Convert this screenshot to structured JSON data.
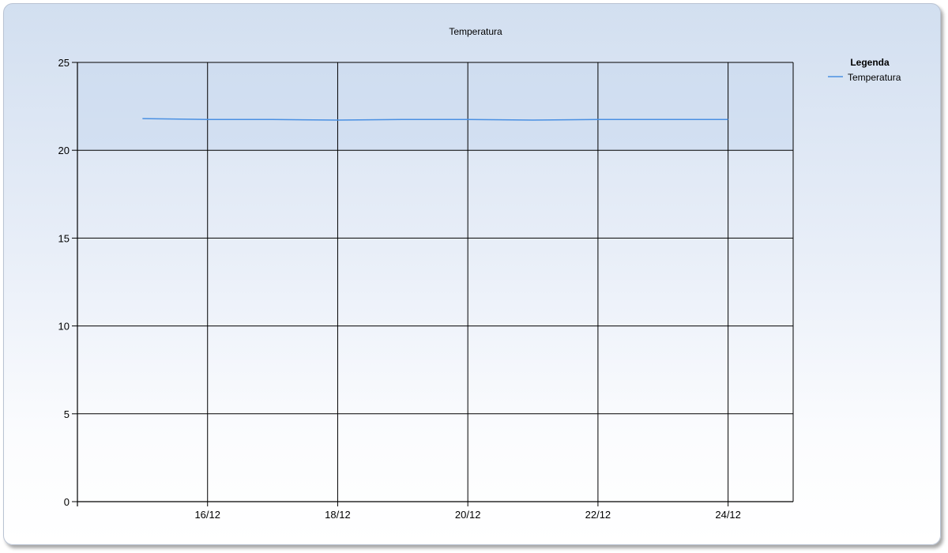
{
  "chart_data": {
    "type": "line",
    "title": "Temperatura",
    "xlabel": "",
    "ylabel": "",
    "ylim": [
      0,
      25
    ],
    "yticks": [
      0,
      5,
      10,
      15,
      20,
      25
    ],
    "xlim": [
      "14/12",
      "25/12"
    ],
    "xtick_labels": [
      "16/12",
      "18/12",
      "20/12",
      "22/12",
      "24/12"
    ],
    "grid": true,
    "legend": {
      "title": "Legenda",
      "placement": "right-top"
    },
    "series": [
      {
        "name": "Temperatura",
        "color": "#4a90e2",
        "x": [
          "15/12",
          "16/12",
          "17/12",
          "18/12",
          "19/12",
          "20/12",
          "21/12",
          "22/12",
          "23/12",
          "24/12"
        ],
        "values": [
          21.8,
          21.75,
          21.75,
          21.72,
          21.75,
          21.75,
          21.72,
          21.75,
          21.75,
          21.75
        ]
      }
    ]
  }
}
